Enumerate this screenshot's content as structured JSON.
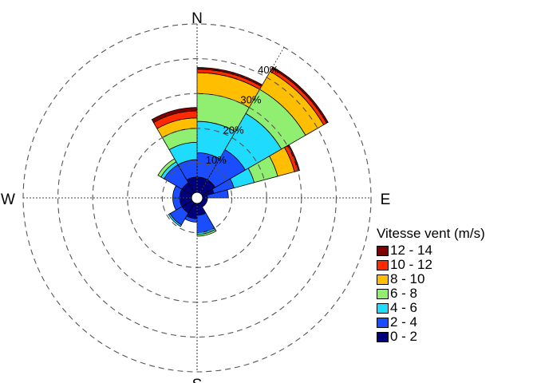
{
  "chart_data": {
    "type": "windrose",
    "title": "",
    "directions": [
      "N",
      "E",
      "S",
      "W"
    ],
    "radial_ticks": [
      "10%",
      "20%",
      "30%",
      "40%"
    ],
    "radial_max_percent": 50,
    "legend": {
      "title": "Vitesse vent (m/s)",
      "bins": [
        {
          "label": "12 - 14",
          "color": "#7f0000"
        },
        {
          "label": "10 - 12",
          "color": "#ff2a00"
        },
        {
          "label": "8 - 10",
          "color": "#ffbf00"
        },
        {
          "label": "6 - 8",
          "color": "#90ee70"
        },
        {
          "label": "4 - 6",
          "color": "#1fdcff"
        },
        {
          "label": "2 - 4",
          "color": "#1a4dff"
        },
        {
          "label": "0 - 2",
          "color": "#00007f"
        }
      ]
    },
    "sectors_cumulative_percent": [
      {
        "from_deg": 0,
        "to_deg": 30,
        "values": [
          6,
          13,
          22,
          30,
          36,
          37,
          37.5
        ]
      },
      {
        "from_deg": 30,
        "to_deg": 60,
        "values": [
          6,
          16,
          28,
          36,
          42,
          43,
          43.5
        ]
      },
      {
        "from_deg": 60,
        "to_deg": 75,
        "values": [
          5,
          11,
          17,
          24,
          29,
          30,
          30.5
        ]
      },
      {
        "from_deg": 75,
        "to_deg": 90,
        "values": [
          3,
          9
        ]
      },
      {
        "from_deg": 90,
        "to_deg": 150,
        "values": [
          3
        ]
      },
      {
        "from_deg": 150,
        "to_deg": 180,
        "values": [
          5,
          10,
          10.5,
          11
        ]
      },
      {
        "from_deg": 180,
        "to_deg": 210,
        "values": [
          6,
          7
        ]
      },
      {
        "from_deg": 210,
        "to_deg": 240,
        "values": [
          5,
          9,
          9.5
        ]
      },
      {
        "from_deg": 240,
        "to_deg": 270,
        "values": [
          5,
          7
        ]
      },
      {
        "from_deg": 270,
        "to_deg": 300,
        "values": [
          5,
          7
        ]
      },
      {
        "from_deg": 300,
        "to_deg": 330,
        "values": [
          5,
          11,
          12,
          13
        ]
      },
      {
        "from_deg": 330,
        "to_deg": 360,
        "values": [
          6,
          11,
          16,
          20,
          23,
          25,
          26
        ]
      }
    ]
  }
}
